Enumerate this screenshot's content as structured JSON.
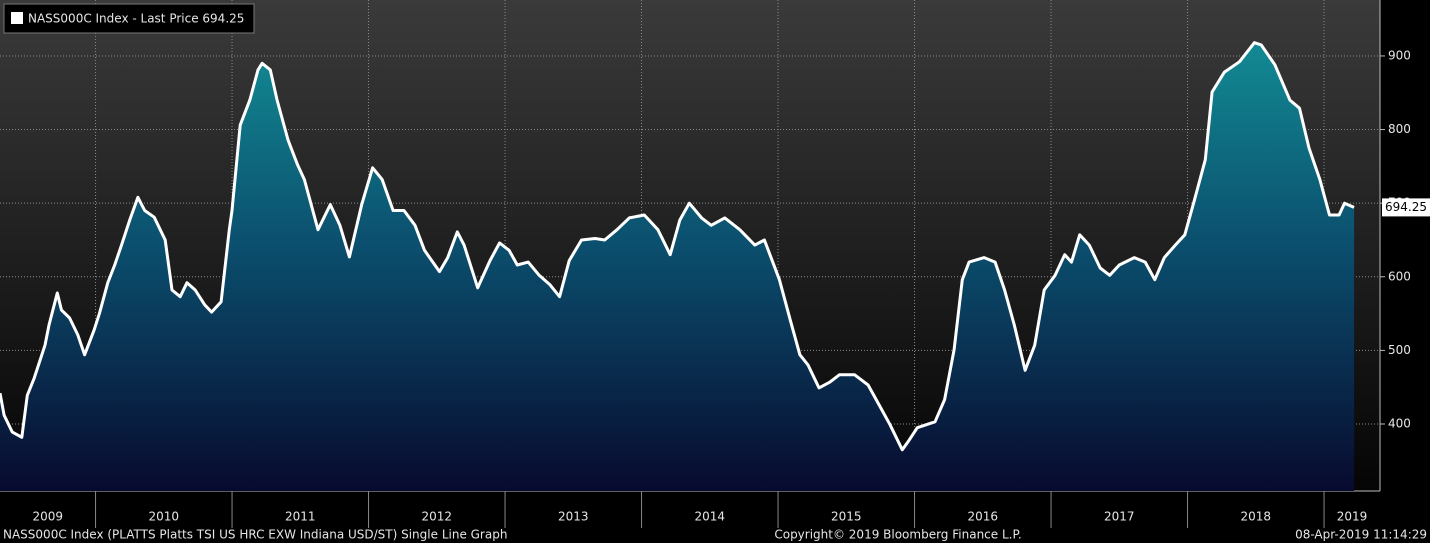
{
  "chart_data": {
    "type": "area",
    "legend_title": "NASS000C Index - Last Price 694.25",
    "footer_left": "NASS000C Index (PLATTS Platts TSI US HRC EXW Indiana USD/ST) Single Line Graph",
    "footer_center": "Copyright© 2019 Bloomberg Finance L.P.",
    "footer_right": "08-Apr-2019 11:14:29",
    "year_labels": [
      "2009",
      "2010",
      "2011",
      "2012",
      "2013",
      "2014",
      "2015",
      "2016",
      "2017",
      "2018",
      "2019"
    ],
    "xlim": [
      2009.3,
      2019.41
    ],
    "xticks": [
      2010,
      2011,
      2012,
      2013,
      2014,
      2015,
      2016,
      2017,
      2018,
      2019
    ],
    "ylim": [
      309,
      976
    ],
    "yticks": [
      400,
      500,
      600,
      700,
      800,
      900
    ],
    "grid": true,
    "series": [
      {
        "name": "NASS000C Index",
        "color": "#ffffff",
        "last_label": "694.25",
        "x": [
          2009.3,
          2009.33,
          2009.39,
          2009.46,
          2009.5,
          2009.55,
          2009.63,
          2009.66,
          2009.72,
          2009.75,
          2009.81,
          2009.87,
          2009.92,
          2009.99,
          2010.03,
          2010.09,
          2010.14,
          2010.19,
          2010.25,
          2010.31,
          2010.36,
          2010.43,
          2010.51,
          2010.56,
          2010.62,
          2010.67,
          2010.73,
          2010.8,
          2010.85,
          2010.92,
          2010.98,
          2011.0,
          2011.06,
          2011.13,
          2011.19,
          2011.22,
          2011.28,
          2011.33,
          2011.41,
          2011.48,
          2011.53,
          2011.63,
          2011.72,
          2011.79,
          2011.86,
          2011.95,
          2012.03,
          2012.1,
          2012.18,
          2012.26,
          2012.34,
          2012.41,
          2012.52,
          2012.58,
          2012.65,
          2012.7,
          2012.8,
          2012.89,
          2012.96,
          2013.03,
          2013.09,
          2013.17,
          2013.25,
          2013.33,
          2013.4,
          2013.47,
          2013.56,
          2013.66,
          2013.73,
          2013.82,
          2013.91,
          2014.02,
          2014.12,
          2014.21,
          2014.28,
          2014.35,
          2014.44,
          2014.51,
          2014.61,
          2014.72,
          2014.83,
          2014.9,
          2015.01,
          2015.09,
          2015.16,
          2015.22,
          2015.3,
          2015.38,
          2015.45,
          2015.56,
          2015.66,
          2015.74,
          2015.82,
          2015.91,
          2015.96,
          2016.02,
          2016.15,
          2016.22,
          2016.29,
          2016.35,
          2016.4,
          2016.51,
          2016.59,
          2016.66,
          2016.73,
          2016.81,
          2016.88,
          2016.95,
          2017.03,
          2017.1,
          2017.15,
          2017.21,
          2017.28,
          2017.36,
          2017.43,
          2017.5,
          2017.61,
          2017.69,
          2017.76,
          2017.83,
          2017.91,
          2017.98,
          2018.05,
          2018.13,
          2018.18,
          2018.27,
          2018.38,
          2018.49,
          2018.54,
          2018.64,
          2018.75,
          2018.82,
          2018.89,
          2018.97,
          2019.04,
          2019.11,
          2019.15,
          2019.22
        ],
        "values": [
          442,
          412,
          389,
          382,
          439,
          462,
          507,
          535,
          578,
          555,
          544,
          521,
          494,
          528,
          551,
          592,
          616,
          643,
          677,
          708,
          690,
          681,
          650,
          582,
          573,
          592,
          582,
          562,
          552,
          566,
          664,
          690,
          806,
          840,
          881,
          890,
          881,
          840,
          786,
          752,
          732,
          664,
          698,
          670,
          627,
          698,
          748,
          732,
          690,
          690,
          670,
          636,
          607,
          626,
          661,
          643,
          585,
          622,
          646,
          636,
          616,
          620,
          602,
          589,
          573,
          622,
          650,
          652,
          650,
          664,
          680,
          684,
          664,
          630,
          677,
          700,
          680,
          670,
          680,
          664,
          643,
          650,
          596,
          541,
          494,
          480,
          449,
          457,
          467,
          467,
          453,
          426,
          399,
          365,
          378,
          395,
          403,
          433,
          501,
          596,
          620,
          626,
          620,
          582,
          535,
          473,
          507,
          582,
          602,
          630,
          620,
          657,
          643,
          612,
          602,
          616,
          626,
          620,
          596,
          626,
          643,
          657,
          704,
          759,
          851,
          878,
          892,
          918,
          915,
          888,
          840,
          829,
          775,
          732,
          684,
          684,
          700,
          694.25
        ]
      }
    ]
  }
}
